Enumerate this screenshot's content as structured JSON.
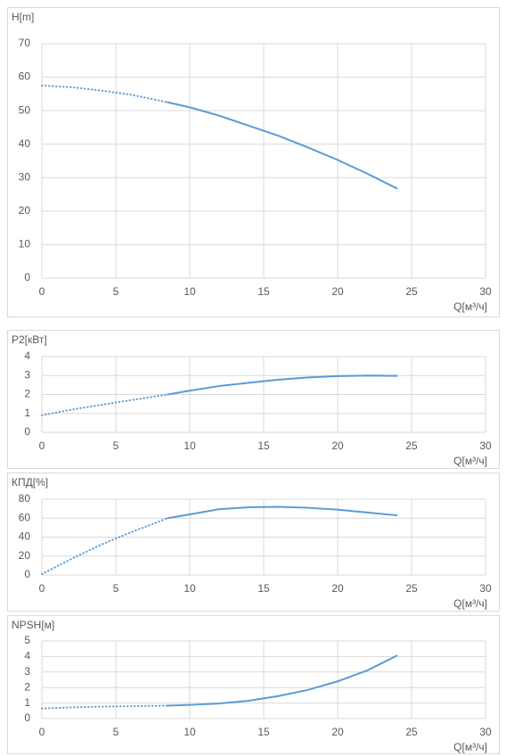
{
  "chart_data": [
    {
      "type": "line",
      "ylabel": "H[m]",
      "xlabel": "Q[м³/ч]",
      "xlim": [
        0,
        30
      ],
      "xticks": [
        0,
        5,
        10,
        15,
        20,
        25,
        30
      ],
      "ylim": [
        0,
        70
      ],
      "yticks": [
        0,
        10,
        20,
        30,
        40,
        50,
        60,
        70
      ],
      "grid": true,
      "series": [
        {
          "color": "#5b9bd5",
          "line_style": "dotted",
          "x": [
            0,
            2,
            4,
            6,
            8.5
          ],
          "values": [
            57.5,
            57,
            56,
            54.8,
            52.5
          ]
        },
        {
          "color": "#5b9bd5",
          "line_style": "solid",
          "x": [
            8.5,
            10,
            12,
            14,
            16,
            18,
            20,
            22,
            24
          ],
          "values": [
            52.5,
            51,
            48.5,
            45.5,
            42.5,
            39,
            35.3,
            31.2,
            26.8
          ]
        }
      ]
    },
    {
      "type": "line",
      "ylabel": "P2[кВт]",
      "xlabel": "Q[м³/ч]",
      "xlim": [
        0,
        30
      ],
      "xticks": [
        0,
        5,
        10,
        15,
        20,
        25,
        30
      ],
      "ylim": [
        0,
        4
      ],
      "yticks": [
        0,
        1,
        2,
        3,
        4
      ],
      "grid": true,
      "series": [
        {
          "color": "#5b9bd5",
          "line_style": "dotted",
          "x": [
            0,
            2,
            4,
            6,
            8.5
          ],
          "values": [
            0.9,
            1.2,
            1.45,
            1.7,
            2.0
          ]
        },
        {
          "color": "#5b9bd5",
          "line_style": "solid",
          "x": [
            8.5,
            10,
            12,
            14,
            16,
            18,
            20,
            22,
            24
          ],
          "values": [
            2.0,
            2.2,
            2.45,
            2.62,
            2.78,
            2.9,
            2.97,
            3.0,
            2.98
          ]
        }
      ]
    },
    {
      "type": "line",
      "ylabel": "КПД[%]",
      "xlabel": "Q[м³/ч]",
      "xlim": [
        0,
        30
      ],
      "xticks": [
        0,
        5,
        10,
        15,
        20,
        25,
        30
      ],
      "ylim": [
        0,
        80
      ],
      "yticks": [
        0,
        20,
        40,
        60,
        80
      ],
      "grid": true,
      "series": [
        {
          "color": "#5b9bd5",
          "line_style": "dotted",
          "x": [
            0,
            2,
            4,
            6,
            8.5
          ],
          "values": [
            1,
            17,
            32,
            45,
            60
          ]
        },
        {
          "color": "#5b9bd5",
          "line_style": "solid",
          "x": [
            8.5,
            10,
            12,
            14,
            16,
            18,
            20,
            22,
            24
          ],
          "values": [
            60,
            64,
            69.5,
            71.5,
            72,
            71,
            69,
            66,
            63
          ]
        }
      ]
    },
    {
      "type": "line",
      "ylabel": "NPSH[м]",
      "xlabel": "Q[м³/ч]",
      "xlim": [
        0,
        30
      ],
      "xticks": [
        0,
        5,
        10,
        15,
        20,
        25,
        30
      ],
      "ylim": [
        0,
        5
      ],
      "yticks": [
        0,
        1,
        2,
        3,
        4,
        5
      ],
      "grid": true,
      "series": [
        {
          "color": "#5b9bd5",
          "line_style": "dotted",
          "x": [
            0,
            2,
            4,
            6,
            8.5
          ],
          "values": [
            0.65,
            0.72,
            0.77,
            0.8,
            0.83
          ]
        },
        {
          "color": "#5b9bd5",
          "line_style": "solid",
          "x": [
            8.5,
            10,
            12,
            14,
            16,
            18,
            20,
            22,
            24
          ],
          "values": [
            0.83,
            0.88,
            0.97,
            1.15,
            1.45,
            1.85,
            2.4,
            3.1,
            4.05
          ]
        }
      ]
    }
  ]
}
